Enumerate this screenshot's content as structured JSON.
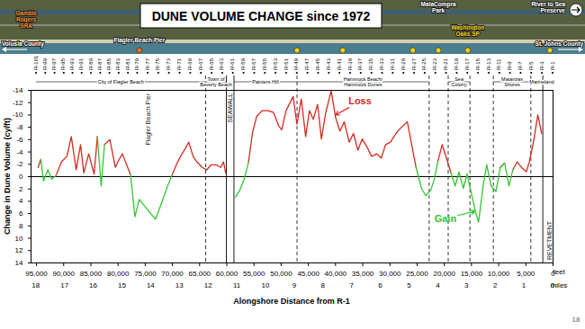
{
  "chart_data": {
    "type": "line",
    "title": "DUNE VOLUME CHANGE since 1972",
    "x_label": "Alongshore Distance from R-1",
    "y_label": "Change in Dune Volume (cy/ft)",
    "x_unit": "feet",
    "x2_unit": "miles",
    "x": [
      94700,
      94200,
      93700,
      92900,
      92200,
      91400,
      90400,
      89400,
      88600,
      87700,
      86900,
      86300,
      85400,
      84400,
      83800,
      83100,
      82500,
      81500,
      80500,
      79800,
      79200,
      77700,
      76900,
      76100,
      75100,
      74100,
      73100,
      72300,
      71400,
      70800,
      70100,
      69300,
      68500,
      67600,
      67000,
      66200,
      65500,
      64500,
      63700,
      62900,
      61900,
      61100,
      60600,
      60200,
      59100,
      58400,
      57600,
      56800,
      56000,
      55300,
      54500,
      53500,
      52400,
      51400,
      50500,
      49900,
      49100,
      47800,
      47100,
      46300,
      45500,
      44800,
      44100,
      43300,
      42600,
      41800,
      40800,
      40000,
      39200,
      38400,
      37500,
      36700,
      35900,
      35100,
      34200,
      33400,
      32400,
      31600,
      30800,
      29900,
      28900,
      27900,
      26800,
      26000,
      25200,
      24200,
      23400,
      22500,
      21900,
      21200,
      20400,
      19600,
      18800,
      18000,
      17300,
      16500,
      15800,
      15000,
      14300,
      13700,
      12800,
      12200,
      11400,
      10500,
      9700,
      8900,
      8100,
      7400,
      6600,
      5800,
      4900,
      4300,
      3600,
      2800,
      2100
    ],
    "series": [
      {
        "name": "Loss",
        "color": "#d42a20",
        "values": [
          -1.5,
          -2.8,
          null,
          -1.1,
          null,
          -0.2,
          -2.4,
          -3.3,
          -6.5,
          -1.1,
          -5.2,
          -0.6,
          -3.7,
          -0.4,
          -6.5,
          null,
          -5.2,
          -6.0,
          -1.5,
          -2.8,
          -3.7,
          -0.3,
          null,
          null,
          null,
          null,
          null,
          null,
          null,
          null,
          -0.2,
          -1.9,
          -3.3,
          -4.6,
          -5.6,
          -3.3,
          -2.4,
          -1.5,
          -1.1,
          -1.9,
          -1.9,
          -1.5,
          -2.4,
          -0.6,
          null,
          null,
          null,
          null,
          -2.4,
          -7.0,
          -9.8,
          -10.7,
          -10.7,
          -10.4,
          -8.3,
          -7.6,
          -10.7,
          -13.0,
          -8.5,
          -12.6,
          -6.5,
          -10.7,
          -9.3,
          -11.7,
          -6.1,
          -10.4,
          -13.9,
          -9.6,
          -7.4,
          -8.9,
          -5.6,
          -7.0,
          -4.3,
          -6.1,
          -4.8,
          -3.3,
          -3.7,
          -3.0,
          -5.2,
          -5.6,
          -7.0,
          -8.0,
          -8.9,
          -5.2,
          -1.5,
          null,
          null,
          null,
          null,
          -2.4,
          -5.2,
          -3.0,
          -0.7,
          null,
          -0.7,
          null,
          -0.4,
          null,
          null,
          null,
          null,
          -1.9,
          null,
          null,
          -1.5,
          -2.2,
          null,
          -1.1,
          -2.4,
          -1.5,
          -0.8,
          -2.6,
          -5.6,
          -10.0,
          -7.0
        ]
      },
      {
        "name": "Gain",
        "color": "#33c633",
        "values": [
          null,
          -2.8,
          0.7,
          -1.1,
          0.4,
          -0.2,
          null,
          null,
          null,
          null,
          null,
          null,
          null,
          null,
          -6.5,
          1.5,
          -5.2,
          null,
          null,
          null,
          null,
          -0.3,
          6.5,
          3.7,
          4.8,
          5.9,
          6.9,
          5.0,
          2.8,
          1.3,
          -0.2,
          null,
          null,
          null,
          null,
          null,
          null,
          null,
          null,
          null,
          null,
          null,
          null,
          null,
          null,
          3.3,
          2.2,
          0.4,
          -2.4,
          null,
          null,
          null,
          null,
          null,
          null,
          null,
          null,
          null,
          null,
          null,
          null,
          null,
          null,
          null,
          null,
          null,
          null,
          null,
          null,
          null,
          null,
          null,
          null,
          null,
          null,
          null,
          null,
          null,
          null,
          null,
          null,
          null,
          null,
          null,
          -1.5,
          1.9,
          3.1,
          2.2,
          0.6,
          -2.4,
          null,
          null,
          -0.7,
          1.5,
          -0.7,
          1.9,
          -0.4,
          2.8,
          5.6,
          7.4,
          1.1,
          -1.9,
          1.5,
          2.4,
          -1.5,
          -2.2,
          1.5,
          -1.1,
          null,
          null,
          null,
          null,
          null,
          null,
          null
        ]
      }
    ],
    "xlim": [
      96000,
      0
    ],
    "xticks": [
      {
        "value": 95000,
        "label": "95,000"
      },
      {
        "value": 90000,
        "label": "90,000"
      },
      {
        "value": 85000,
        "label": "85,000"
      },
      {
        "value": 80000,
        "label": "80,000"
      },
      {
        "value": 75000,
        "label": "75,000"
      },
      {
        "value": 70000,
        "label": "70,000"
      },
      {
        "value": 65000,
        "label": "65,000"
      },
      {
        "value": 60000,
        "label": "60,000"
      },
      {
        "value": 55000,
        "label": "55,000"
      },
      {
        "value": 50000,
        "label": "50,000"
      },
      {
        "value": 45000,
        "label": "45,000"
      },
      {
        "value": 40000,
        "label": "40,000"
      },
      {
        "value": 35000,
        "label": "35,000"
      },
      {
        "value": 30000,
        "label": "30,000"
      },
      {
        "value": 25000,
        "label": "25,000"
      },
      {
        "value": 20000,
        "label": "20,000"
      },
      {
        "value": 15000,
        "label": "15,000"
      },
      {
        "value": 10000,
        "label": "10,000"
      },
      {
        "value": 5000,
        "label": "5,000"
      },
      0
    ],
    "x2lim": [
      18.18,
      0
    ],
    "x2ticks": [
      18,
      17,
      16,
      15,
      14,
      13,
      12,
      11,
      10,
      9,
      8,
      7,
      6,
      5,
      4,
      3,
      2,
      1,
      0
    ],
    "ylim": [
      14,
      -14
    ],
    "yticks": [
      -14,
      -12,
      -10,
      -8,
      -6,
      -4,
      -2,
      0,
      2,
      4,
      6,
      8,
      10,
      12,
      14
    ],
    "baseline": 0,
    "annotations": [
      {
        "text": "Loss",
        "x": 35500,
        "y": -12.2,
        "arrow": [
          40000,
          -10.0
        ]
      },
      {
        "text": "Gain",
        "x": 19800,
        "y": 6.8,
        "arrow": [
          14300,
          5.6
        ]
      }
    ],
    "monuments": {
      "labels": [
        "R-101",
        "R-99",
        "R-97",
        "R-95",
        "R-93",
        "R-91",
        "R-89",
        "R-87",
        "R-85",
        "R-83",
        "R-81",
        "R-79",
        "R-77",
        "R-75",
        "R-73",
        "R-71",
        "R-69",
        "R-67",
        "R-65",
        "R-63",
        "R-61",
        "R-59",
        "R-57",
        "R-55",
        "R-53",
        "R-51",
        "R-49",
        "R-47",
        "R-45",
        "R-43",
        "R-41",
        "R-39",
        "R-37",
        "R-35",
        "R-33",
        "R-31",
        "R-29",
        "R-27",
        "R-25",
        "R-23",
        "R-21",
        "R-19",
        "R-17",
        "R-15",
        "R-13",
        "R-11",
        "R-9",
        "R-7",
        "R-5",
        "R-3",
        "R-1"
      ],
      "x": [
        95000,
        93300,
        91600,
        89900,
        88300,
        86600,
        84900,
        83200,
        81500,
        79800,
        78100,
        76400,
        74480,
        72520,
        70560,
        68600,
        66640,
        64680,
        62720,
        60760,
        58800,
        56840,
        54880,
        52920,
        50960,
        49000,
        47040,
        45080,
        43120,
        41160,
        39200,
        37240,
        35280,
        33320,
        31360,
        29400,
        27440,
        25480,
        23520,
        21560,
        19600,
        17640,
        15680,
        13720,
        11760,
        9800,
        7840,
        5880,
        3920,
        1960,
        0
      ]
    },
    "regions": [
      {
        "text": "City of Flagler Beach",
        "from": 95000,
        "to": 63800
      },
      {
        "text": "Town of\nBeverly Beach",
        "from": 63800,
        "to": 60000
      },
      {
        "text": "Painters Hill",
        "from": 58600,
        "to": 47000
      },
      {
        "text": "Hammock Beach/\nHammock Dunes",
        "from": 47000,
        "to": 22700
      },
      {
        "text": "Sea\nColony",
        "from": 19200,
        "to": 15200
      },
      {
        "text": "Matanzas\nShores",
        "from": 10900,
        "to": 4000
      },
      {
        "text": "Marineland",
        "from": 4000,
        "to": 0
      }
    ],
    "boundaries": [
      63800,
      47000,
      22700,
      19200,
      15200,
      10900,
      4000
    ],
    "structure_lines": [
      60000,
      58600,
      1800
    ],
    "structures": [
      {
        "text": "Flagler Beach Pier",
        "x": 74400,
        "y": -13.5
      },
      {
        "text": "SEAWALL",
        "x": 59300,
        "y": -13.5
      },
      {
        "text": "REVETMENT",
        "x": 700,
        "y": 13.5
      }
    ],
    "map_labels": [
      {
        "text": "Flagler Beach Pier",
        "x": 76000,
        "color": "#ffffff"
      },
      {
        "text": "MalaCompra\nPark",
        "x": 21000,
        "color": "#ffffff"
      },
      {
        "text": "River to Sea\nPreserve",
        "x": 500,
        "color": "#ffffff"
      },
      {
        "text": "Washington\nOaks SP",
        "x": 15600,
        "color": "#f4d311"
      },
      {
        "text": "Gamble\nRogers\nSRA",
        "x": 96800,
        "color": "#f08a24"
      }
    ],
    "map_markers": [
      {
        "x": 76000,
        "color": "#e8761c"
      },
      {
        "x": 47000,
        "color": "#f4d311"
      },
      {
        "x": 38600,
        "color": "#f4d311"
      },
      {
        "x": 25700,
        "color": "#f4d311"
      },
      {
        "x": 21000,
        "color": "#f4d311"
      },
      {
        "x": 15600,
        "color": "#f4d311"
      },
      {
        "x": 500,
        "color": "#f4d311"
      }
    ],
    "counties": [
      "Volusia County",
      "St. Johns County"
    ],
    "page_number": 18
  }
}
